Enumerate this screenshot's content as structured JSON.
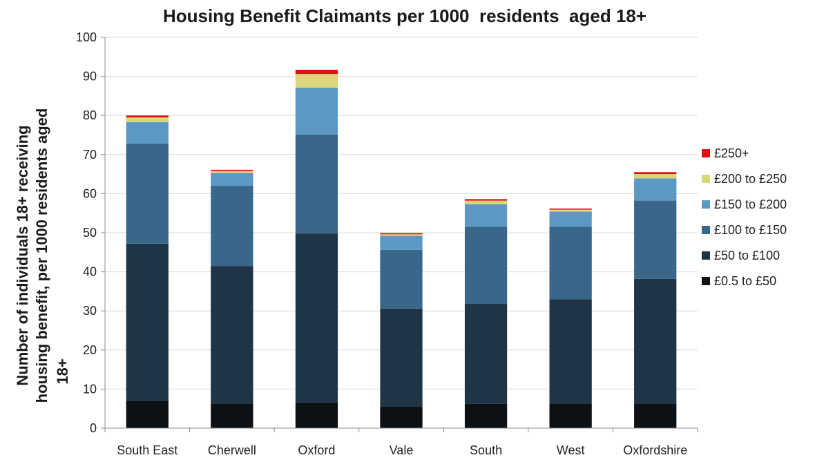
{
  "chart_data": {
    "type": "bar",
    "stacked": true,
    "title": "Housing Benefit Claimants per 1000  residents  aged 18+",
    "ylabel_lines": [
      "Number of individuals 18+ receiving",
      "housing benefit, per 1000 residents aged",
      "18+"
    ],
    "xlabel": "",
    "ylim": [
      0,
      100
    ],
    "yticks": [
      0,
      10,
      20,
      30,
      40,
      50,
      60,
      70,
      80,
      90,
      100
    ],
    "categories": [
      "South East",
      "Cherwell",
      "Oxford",
      "Vale",
      "South",
      "West",
      "Oxfordshire"
    ],
    "series": [
      {
        "name": "£0.5 to £50",
        "color": "#0b1115",
        "values": [
          7.0,
          6.3,
          6.6,
          5.6,
          6.2,
          6.3,
          6.3
        ]
      },
      {
        "name": "£50 to £100",
        "color": "#1f3447",
        "values": [
          40.2,
          35.2,
          43.2,
          25.0,
          25.6,
          26.7,
          31.9
        ]
      },
      {
        "name": "£100 to £150",
        "color": "#38678a",
        "values": [
          25.6,
          20.5,
          25.3,
          15.0,
          19.7,
          18.5,
          20.0
        ]
      },
      {
        "name": "£150 to £200",
        "color": "#5c98c4",
        "values": [
          5.5,
          3.3,
          12.0,
          3.6,
          5.8,
          3.9,
          5.7
        ]
      },
      {
        "name": "£200 to £250",
        "color": "#dcd67a",
        "values": [
          1.2,
          0.5,
          3.5,
          0.4,
          0.9,
          0.5,
          1.1
        ]
      },
      {
        "name": "£250+",
        "color": "#dd1111",
        "values": [
          0.5,
          0.3,
          1.1,
          0.3,
          0.4,
          0.3,
          0.5
        ]
      }
    ],
    "legend_position": "right",
    "legend_order": [
      "£250+",
      "£200 to £250",
      "£150 to £200",
      "£100 to £150",
      "£50 to £100",
      "£0.5 to £50"
    ],
    "grid": true,
    "gridline_color": "#d9d9d9"
  }
}
